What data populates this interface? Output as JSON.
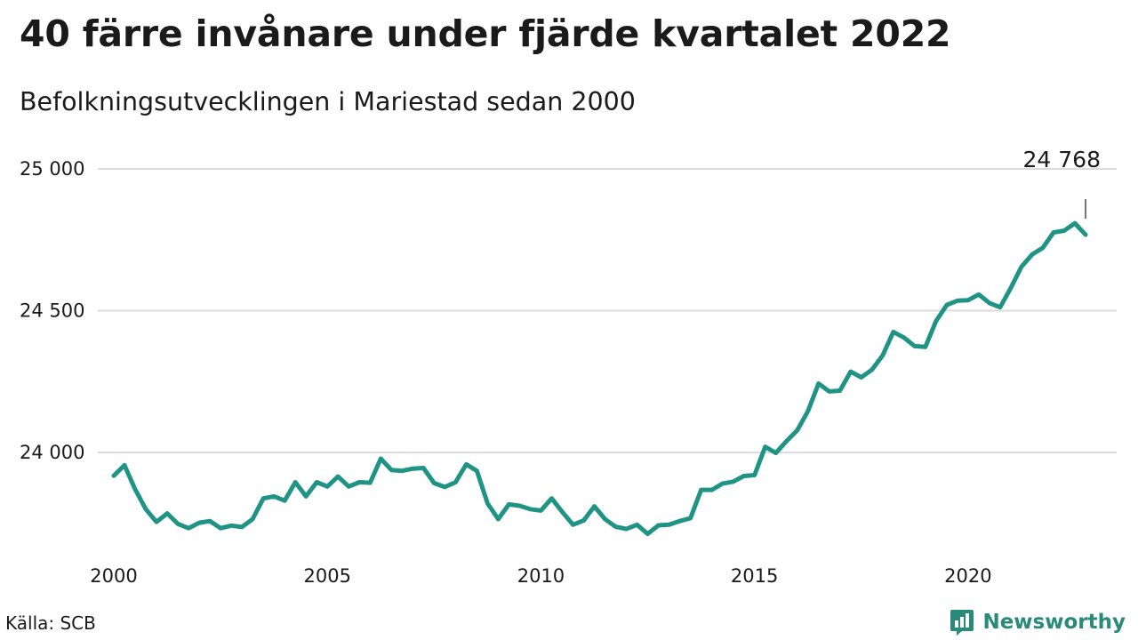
{
  "header": {
    "title": "40 färre invånare under fjärde kvartalet 2022",
    "subtitle": "Befolkningsutvecklingen i Mariestad sedan 2000"
  },
  "footer": {
    "source": "Källa: SCB",
    "brand": "Newsworthy"
  },
  "colors": {
    "line": "#1f9484",
    "grid": "#dcdcdc",
    "brand": "#2a8a7a"
  },
  "chart_data": {
    "type": "line",
    "title": "40 färre invånare under fjärde kvartalet 2022",
    "subtitle": "Befolkningsutvecklingen i Mariestad sedan 2000",
    "xlabel": "",
    "ylabel": "",
    "xlim": [
      2000,
      2022.75
    ],
    "ylim": [
      23700,
      25000
    ],
    "x_ticks": [
      2000,
      2005,
      2010,
      2015,
      2020
    ],
    "x_tick_labels": [
      "2000",
      "2005",
      "2010",
      "2015",
      "2020"
    ],
    "y_ticks": [
      24000,
      24500,
      25000
    ],
    "y_tick_labels": [
      "24 000",
      "24 500",
      "25 000"
    ],
    "grid": "horizontal",
    "legend": "none",
    "annotation": {
      "label": "24 768",
      "x": 2022.75,
      "y": 24768
    },
    "series": [
      {
        "x": [
          2000.0,
          2000.25,
          2000.5,
          2000.75,
          2001.0,
          2001.25,
          2001.5,
          2001.75,
          2002.0,
          2002.25,
          2002.5,
          2002.75,
          2003.0,
          2003.25,
          2003.5,
          2003.75,
          2004.0,
          2004.25,
          2004.5,
          2004.75,
          2005.0,
          2005.25,
          2005.5,
          2005.75,
          2006.0,
          2006.25,
          2006.5,
          2006.75,
          2007.0,
          2007.25,
          2007.5,
          2007.75,
          2008.0,
          2008.25,
          2008.5,
          2008.75,
          2009.0,
          2009.25,
          2009.5,
          2009.75,
          2010.0,
          2010.25,
          2010.5,
          2010.75,
          2011.0,
          2011.25,
          2011.5,
          2011.75,
          2012.0,
          2012.25,
          2012.5,
          2012.75,
          2013.0,
          2013.25,
          2013.5,
          2013.75,
          2014.0,
          2014.25,
          2014.5,
          2014.75,
          2015.0,
          2015.25,
          2015.5,
          2015.75,
          2016.0,
          2016.25,
          2016.5,
          2016.75,
          2017.0,
          2017.25,
          2017.5,
          2017.75,
          2018.0,
          2018.25,
          2018.5,
          2018.75,
          2019.0,
          2019.25,
          2019.5,
          2019.75,
          2020.0,
          2020.25,
          2020.5,
          2020.75,
          2021.0,
          2021.25,
          2021.5,
          2021.75,
          2022.0,
          2022.25,
          2022.5,
          2022.75
        ],
        "y": [
          23918,
          23955,
          23870,
          23800,
          23755,
          23785,
          23748,
          23733,
          23752,
          23758,
          23733,
          23742,
          23737,
          23765,
          23838,
          23845,
          23830,
          23895,
          23845,
          23895,
          23880,
          23915,
          23880,
          23895,
          23893,
          23978,
          23938,
          23935,
          23943,
          23945,
          23892,
          23878,
          23895,
          23958,
          23935,
          23820,
          23765,
          23817,
          23812,
          23800,
          23795,
          23838,
          23790,
          23745,
          23760,
          23810,
          23765,
          23738,
          23730,
          23745,
          23713,
          23743,
          23745,
          23758,
          23768,
          23868,
          23868,
          23890,
          23897,
          23917,
          23920,
          24020,
          23998,
          24040,
          24078,
          24145,
          24243,
          24215,
          24218,
          24285,
          24265,
          24292,
          24342,
          24425,
          24405,
          24375,
          24372,
          24463,
          24520,
          24535,
          24537,
          24557,
          24527,
          24512,
          24580,
          24655,
          24698,
          24722,
          24776,
          24782,
          24808,
          24768
        ]
      }
    ]
  }
}
